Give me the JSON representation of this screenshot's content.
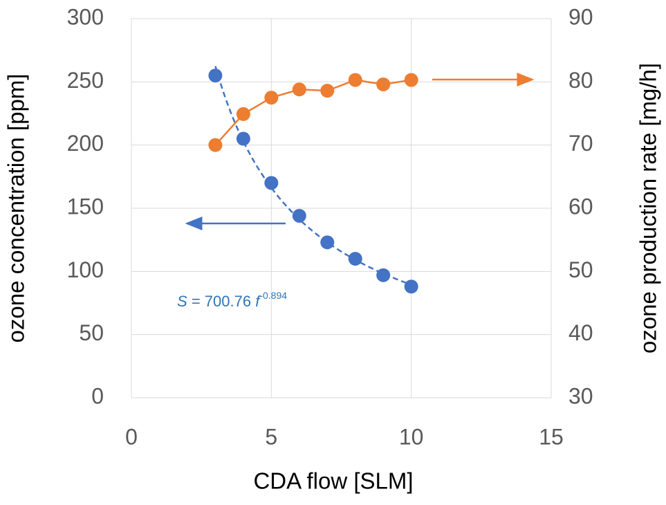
{
  "chart_data": {
    "type": "scatter",
    "xlabel": "CDA flow [SLM]",
    "ylabel": "ozone concentration [ppm]",
    "y2label": "ozone production rate [mg/h]",
    "x": [
      3,
      4,
      5,
      6,
      7,
      8,
      9,
      10
    ],
    "series": [
      {
        "color": "#4472c4",
        "values": [
          255,
          205,
          170,
          144,
          123,
          110,
          97,
          88
        ],
        "line": "none"
      },
      {
        "color": "#ed7d31",
        "axis": "y2",
        "values": [
          70,
          74.9,
          77.5,
          78.8,
          78.6,
          80.3,
          79.6,
          80.3
        ],
        "line": "solid"
      }
    ],
    "fit": {
      "color": "#4472c4",
      "label_color": "#2e75b6",
      "lhs": "S",
      "equals": "=",
      "coefficient": 700.76,
      "variable": "f",
      "exponent": -0.894
    },
    "xlim": [
      0,
      15
    ],
    "xticks": [
      0,
      5,
      10,
      15
    ],
    "ylim": [
      0,
      300
    ],
    "yticks": [
      0,
      50,
      100,
      150,
      200,
      250,
      300
    ],
    "y2lim": [
      30,
      90
    ],
    "y2ticks": [
      30,
      40,
      50,
      60,
      70,
      80,
      90
    ],
    "grid": true
  }
}
